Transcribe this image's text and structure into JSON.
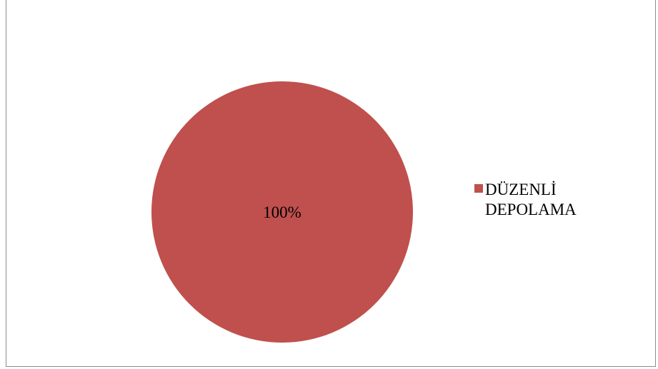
{
  "chart_data": {
    "type": "pie",
    "categories": [
      "DÜZENLİ DEPOLAMA"
    ],
    "values": [
      100
    ],
    "data_labels": [
      "100%"
    ],
    "legend_placement": "right",
    "colors": [
      "#c0504d"
    ]
  },
  "legend": {
    "items": [
      {
        "label": "DÜZENLİ DEPOLAMA",
        "color": "#c0504d"
      }
    ]
  }
}
